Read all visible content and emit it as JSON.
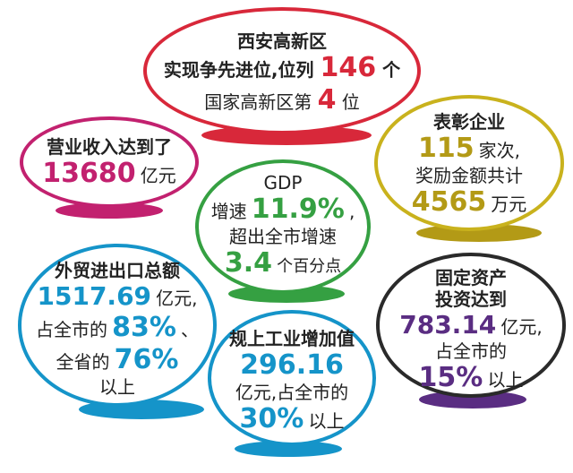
{
  "colors": {
    "red": "#d8283a",
    "magenta": "#c2216f",
    "gold": "#b39a16",
    "green": "#35a042",
    "blue": "#1594c9",
    "purple": "#5a2d82"
  },
  "top": {
    "line1": "西安高新区",
    "line2_pre": "实现争先进位,位列",
    "line2_num": "146",
    "line2_post": "个",
    "line3_pre": "国家高新区第",
    "line3_num": "4",
    "line3_post": "位"
  },
  "revenue": {
    "line1": "营业收入达到了",
    "num": "13680",
    "unit": "亿元"
  },
  "awards": {
    "line1": "表彰企业",
    "num1": "115",
    "unit1": "家次,",
    "line3": "奖励金额共计",
    "num2": "4565",
    "unit2": "万元"
  },
  "gdp": {
    "title": "GDP",
    "line2_pre": "增速",
    "line2_num": "11.9%",
    "line2_post": ",",
    "line3": "超出全市增速",
    "num2": "3.4",
    "unit2": "个百分点"
  },
  "trade": {
    "line1": "外贸进出口总额",
    "num1": "1517.69",
    "unit1": "亿元,",
    "line3_pre": "占全市的",
    "num2": "83%",
    "line3_post": "、",
    "line4_pre": "全省的",
    "num3": "76%",
    "line5": "以上"
  },
  "industry": {
    "line1": "规上工业增加值",
    "num1": "296.16",
    "line3": "亿元,占全市的",
    "num2": "30%",
    "unit2": "以上"
  },
  "investment": {
    "line1": "固定资产",
    "line2": "投资达到",
    "num1": "783.14",
    "unit1": "亿元,",
    "line4": "占全市的",
    "num2": "15%",
    "unit2": "以上"
  }
}
